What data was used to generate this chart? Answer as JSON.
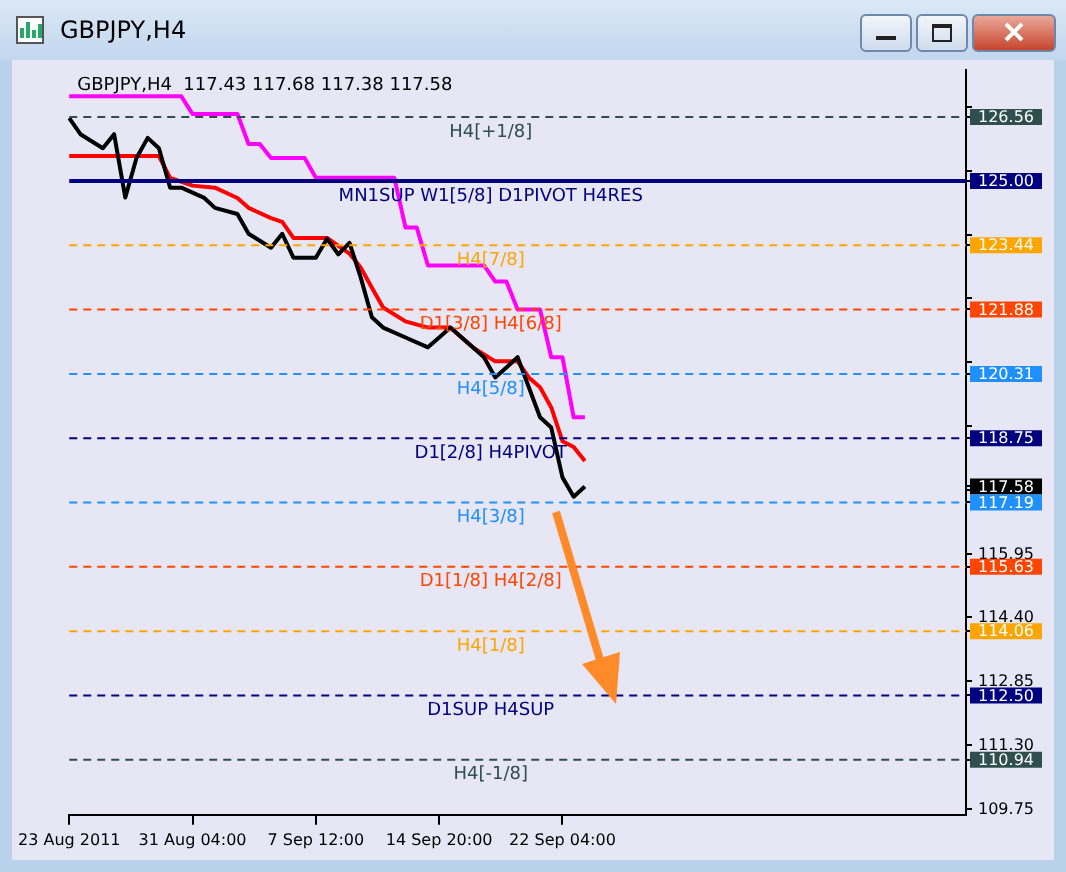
{
  "chart_data": {
    "type": "line",
    "title": "GBPJPY,H4",
    "subtitle": "GBPJPY,H4  117.43 117.68 117.38 117.58",
    "categories": [
      "23 Aug 2011",
      null,
      null,
      null,
      null,
      null,
      null,
      null,
      null,
      null,
      null,
      "31 Aug 04:00",
      null,
      null,
      null,
      null,
      null,
      null,
      null,
      null,
      null,
      null,
      "7 Sep 12:00",
      null,
      null,
      null,
      null,
      null,
      null,
      null,
      null,
      null,
      null,
      "14 Sep 20:00",
      null,
      null,
      null,
      null,
      null,
      null,
      null,
      null,
      null,
      null,
      "22 Sep 04:00",
      null,
      null,
      null,
      null,
      null,
      null,
      null,
      null,
      null,
      null,
      null,
      null,
      null,
      null,
      null,
      null,
      null,
      null,
      null,
      null,
      null,
      null,
      null,
      null,
      null,
      null,
      null,
      null,
      null,
      null,
      null,
      null,
      null,
      null,
      null,
      null
    ],
    "series": [
      {
        "color": "#000000",
        "values": [
          126.53,
          126.14,
          null,
          125.8,
          126.14,
          124.6,
          125.56,
          126.05,
          125.8,
          124.84,
          124.84,
          null,
          124.6,
          124.35,
          null,
          124.2,
          123.72,
          null,
          123.38,
          123.72,
          123.14,
          null,
          123.14,
          123.6,
          123.22,
          123.5,
          122.66,
          121.69,
          121.44,
          null,
          121.2,
          null,
          120.96,
          121.2,
          121.44,
          null,
          120.96,
          120.72,
          120.23,
          120.47,
          120.72,
          119.99,
          119.26,
          119.01,
          117.8,
          117.33,
          117.58,
          null,
          null,
          null,
          null,
          null,
          null,
          null,
          null,
          null,
          null,
          null,
          null,
          null,
          null,
          null,
          null,
          null,
          null,
          null,
          null,
          null,
          null,
          null,
          null,
          null,
          null,
          null,
          null,
          null,
          null,
          null,
          null,
          null,
          null
        ]
      },
      {
        "color": "#ff0000",
        "values": [
          125.61,
          null,
          null,
          null,
          null,
          null,
          null,
          null,
          125.61,
          125.08,
          null,
          124.89,
          null,
          124.84,
          null,
          124.59,
          124.35,
          null,
          124.1,
          124.01,
          123.62,
          null,
          null,
          123.62,
          null,
          123.24,
          122.9,
          122.41,
          121.93,
          null,
          121.59,
          null,
          121.44,
          null,
          121.44,
          121.2,
          120.96,
          null,
          120.62,
          null,
          120.62,
          120.23,
          119.99,
          119.5,
          118.68,
          118.54,
          118.2,
          null,
          null,
          null,
          null,
          null,
          null,
          null,
          null,
          null,
          null,
          null,
          null,
          null,
          null,
          null,
          null,
          null,
          null,
          null,
          null,
          null,
          null,
          null,
          null,
          null,
          null,
          null,
          null,
          null,
          null,
          null,
          null,
          null,
          null
        ]
      },
      {
        "color": "#ff00ff",
        "values": [
          127.06,
          null,
          null,
          null,
          null,
          null,
          null,
          null,
          null,
          null,
          127.06,
          126.63,
          null,
          null,
          null,
          126.63,
          125.9,
          125.9,
          125.56,
          null,
          null,
          125.56,
          125.08,
          null,
          null,
          null,
          null,
          null,
          null,
          125.08,
          123.87,
          123.87,
          122.95,
          null,
          null,
          null,
          null,
          122.95,
          122.56,
          122.56,
          121.88,
          null,
          121.88,
          120.72,
          120.72,
          119.26,
          119.26,
          null,
          null,
          null,
          null,
          null,
          null,
          null,
          null,
          null,
          null,
          null,
          null,
          null,
          null,
          null,
          null,
          null,
          null,
          null,
          null,
          null,
          null,
          null,
          null,
          null,
          null,
          null,
          null,
          null,
          null,
          null,
          null,
          null,
          null
        ]
      }
    ],
    "ylim": [
      109.6,
      127.7
    ],
    "yticks": [
      {
        "value": 126.8,
        "label": null
      },
      {
        "value": 126.56,
        "label": "126.56"
      },
      {
        "value": 125.25,
        "label": null
      },
      {
        "value": 125.0,
        "label": "125.00"
      },
      {
        "value": 123.7,
        "label": null
      },
      {
        "value": 123.44,
        "label": "123.44"
      },
      {
        "value": 122.15,
        "label": null
      },
      {
        "value": 121.88,
        "label": "121.88"
      },
      {
        "value": 120.6,
        "label": null
      },
      {
        "value": 120.31,
        "label": "120.31"
      },
      {
        "value": 119.05,
        "label": null
      },
      {
        "value": 118.75,
        "label": "118.75"
      },
      {
        "value": 117.58,
        "label": "117.58"
      },
      {
        "value": 117.5,
        "label": null
      },
      {
        "value": 117.19,
        "label": "117.19"
      },
      {
        "value": 115.95,
        "label": "115.95"
      },
      {
        "value": 115.63,
        "label": "115.63"
      },
      {
        "value": 114.4,
        "label": "114.40"
      },
      {
        "value": 114.06,
        "label": "114.06"
      },
      {
        "value": 112.85,
        "label": "112.85"
      },
      {
        "value": 112.5,
        "label": "112.50"
      },
      {
        "value": 111.3,
        "label": "111.30"
      },
      {
        "value": 110.94,
        "label": "110.94"
      },
      {
        "value": 109.75,
        "label": "109.75"
      }
    ],
    "ref_lines": [
      {
        "axis": "y",
        "value": 126.56,
        "label": "H4[+1/8]",
        "color": "#2f4f4f",
        "line_style": "dashed"
      },
      {
        "axis": "y",
        "value": 125.0,
        "label": "MN1SUP W1[5/8] D1PIVOT H4RES",
        "color": "#000080",
        "line_style": "solid"
      },
      {
        "axis": "y",
        "value": 123.44,
        "label": "H4[7/8]",
        "color": "#ffa500",
        "line_style": "dashed"
      },
      {
        "axis": "y",
        "value": 121.88,
        "label": "D1[3/8] H4[6/8]",
        "color": "#ff4500",
        "line_style": "dashed"
      },
      {
        "axis": "y",
        "value": 120.31,
        "label": "H4[5/8]",
        "color": "#1e90ff",
        "line_style": "dashed"
      },
      {
        "axis": "y",
        "value": 118.75,
        "label": "D1[2/8] H4PIVOT",
        "color": "#000080",
        "line_style": "dashed"
      },
      {
        "axis": "y",
        "value": 117.19,
        "label": "H4[3/8]",
        "color": "#1e90ff",
        "line_style": "dashed"
      },
      {
        "axis": "y",
        "value": 115.63,
        "label": "D1[1/8] H4[2/8]",
        "color": "#ff4500",
        "line_style": "dashed"
      },
      {
        "axis": "y",
        "value": 114.06,
        "label": "H4[1/8]",
        "color": "#ffa500",
        "line_style": "dashed"
      },
      {
        "axis": "y",
        "value": 112.5,
        "label": "D1SUP H4SUP",
        "color": "#000080",
        "line_style": "dashed"
      },
      {
        "axis": "y",
        "value": 110.94,
        "label": "H4[-1/8]",
        "color": "#2f4f4f",
        "line_style": "dashed"
      }
    ],
    "grid": false,
    "legend": false,
    "marker": "none",
    "line_style": "solid"
  }
}
